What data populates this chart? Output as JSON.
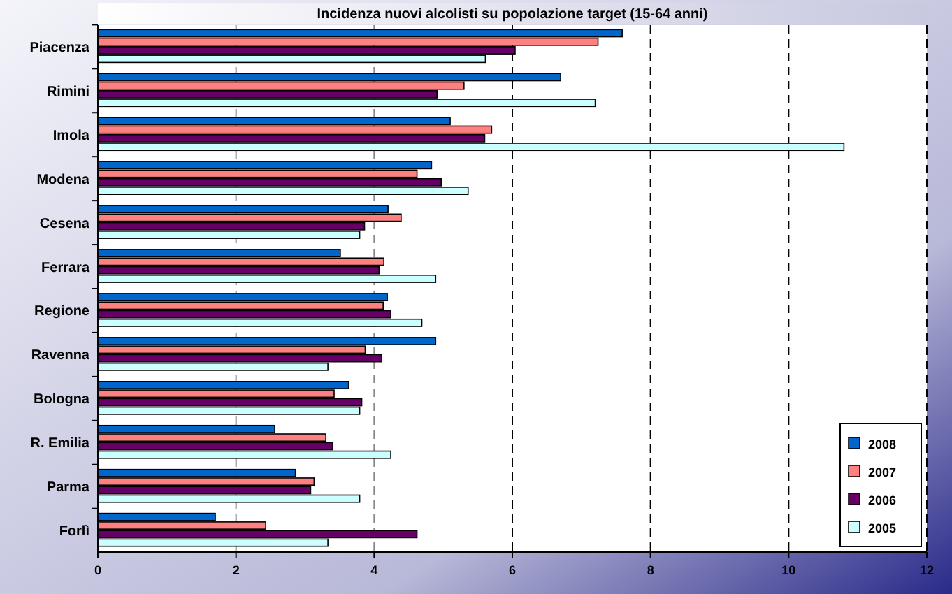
{
  "chart_data": {
    "type": "bar",
    "orientation": "horizontal",
    "title": "Incidenza nuovi alcolisti su popolazione target (15-64 anni)",
    "categories": [
      "Piacenza",
      "Rimini",
      "Imola",
      "Modena",
      "Cesena",
      "Ferrara",
      "Regione",
      "Ravenna",
      "Bologna",
      "R. Emilia",
      "Parma",
      "Forlì"
    ],
    "series": [
      {
        "name": "2008",
        "color": "#0066cc",
        "values": [
          7.59,
          6.7,
          5.1,
          4.83,
          4.2,
          3.51,
          4.19,
          4.89,
          3.63,
          2.56,
          2.86,
          1.7
        ]
      },
      {
        "name": "2007",
        "color": "#ff8080",
        "values": [
          7.24,
          5.3,
          5.7,
          4.62,
          4.39,
          4.14,
          4.13,
          3.87,
          3.42,
          3.3,
          3.13,
          2.43
        ]
      },
      {
        "name": "2006",
        "color": "#660066",
        "values": [
          6.04,
          4.91,
          5.6,
          4.97,
          3.86,
          4.07,
          4.24,
          4.11,
          3.82,
          3.4,
          3.08,
          4.62
        ]
      },
      {
        "name": "2005",
        "color": "#ccffff",
        "values": [
          5.61,
          7.2,
          10.8,
          5.36,
          3.79,
          4.89,
          4.69,
          3.33,
          3.79,
          4.24,
          3.79,
          3.33
        ]
      }
    ],
    "xlim": [
      0,
      12
    ],
    "xticks": [
      0,
      2,
      4,
      6,
      8,
      10,
      12
    ],
    "grid": "x",
    "legend": "bottom right"
  }
}
